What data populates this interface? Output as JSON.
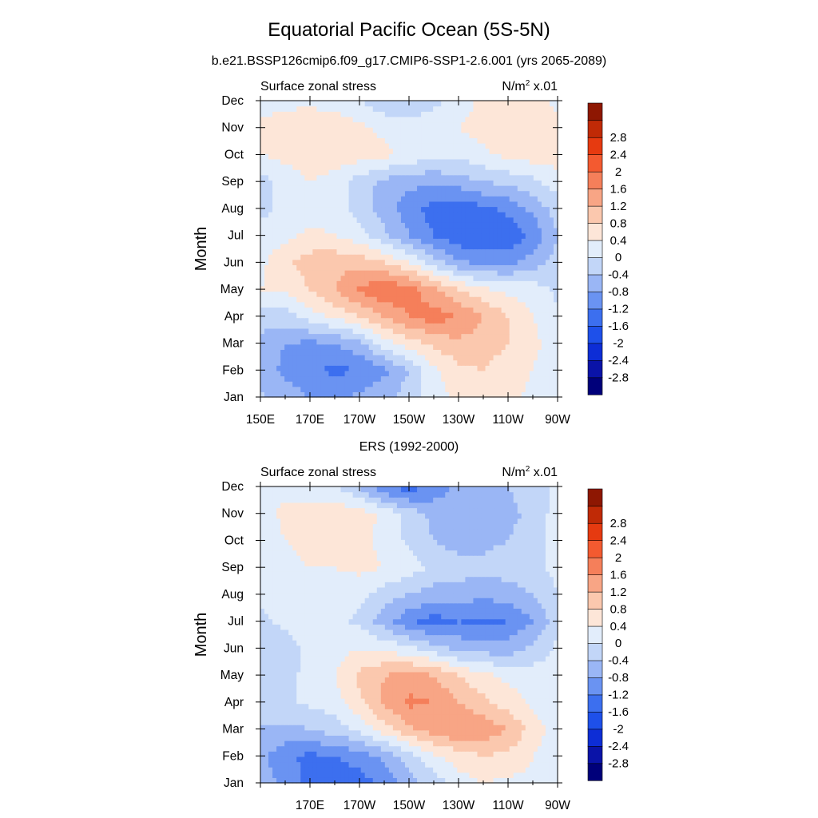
{
  "figure": {
    "title": "Equatorial Pacific Ocean (5S-5N)",
    "subtitle": "b.e21.BSSP126cmip6.f09_g17.CMIP6-SSP1-2.6.001 (yrs 2065-2089)"
  },
  "colors": {
    "levels": [
      "#00007a",
      "#0a13a8",
      "#0d2dd6",
      "#1e50ea",
      "#3c6fef",
      "#6a93f2",
      "#9ab6f5",
      "#c2d6f8",
      "#e2edfb",
      "#fde6d8",
      "#fbc8ae",
      "#f8a585",
      "#f57f5a",
      "#f35a30",
      "#e63a10",
      "#c02a06",
      "#8e1702"
    ]
  },
  "chart_data": [
    {
      "type": "heatmap",
      "panel": "top",
      "title": "",
      "left_label": "Surface zonal stress",
      "right_label": "N/m",
      "right_label_sup": "2",
      "right_label_suffix": " x.01",
      "xlabel": "",
      "ylabel": "Month",
      "x_range": [
        "150E",
        "90W"
      ],
      "x_ticks": [
        "150E",
        "170E",
        "170W",
        "150W",
        "130W",
        "110W",
        "90W"
      ],
      "y_ticks": [
        "Jan",
        "Feb",
        "Mar",
        "Apr",
        "May",
        "Jun",
        "Jul",
        "Aug",
        "Sep",
        "Oct",
        "Nov",
        "Dec"
      ],
      "colorbar_labels": [
        "-2.8",
        "-2.4",
        "-2",
        "-1.6",
        "-1.2",
        "-0.8",
        "-0.4",
        "0",
        "0.4",
        "0.8",
        "1.2",
        "1.6",
        "2",
        "2.4",
        "2.8"
      ],
      "x_values": [
        150,
        160,
        170,
        180,
        190,
        200,
        210,
        220,
        230,
        240,
        250,
        260,
        270
      ],
      "months": [
        "Jan",
        "Feb",
        "Mar",
        "Apr",
        "May",
        "Jun",
        "Jul",
        "Aug",
        "Sep",
        "Oct",
        "Nov",
        "Dec"
      ],
      "values": [
        [
          -0.3,
          -0.6,
          -0.8,
          -0.9,
          -0.7,
          -0.5,
          -0.2,
          0.2,
          0.5,
          0.6,
          0.5,
          0.3,
          0.1
        ],
        [
          -0.6,
          -0.9,
          -1.1,
          -1.3,
          -1.2,
          -0.9,
          -0.4,
          0.3,
          0.7,
          0.8,
          0.6,
          0.4,
          0.1
        ],
        [
          -0.5,
          -0.8,
          -0.9,
          -0.8,
          -0.5,
          0.2,
          0.6,
          0.9,
          1.1,
          1.0,
          0.8,
          0.5,
          0.2
        ],
        [
          -0.2,
          -0.2,
          0.2,
          0.5,
          0.8,
          1.2,
          1.6,
          1.8,
          1.6,
          1.2,
          0.8,
          0.4,
          0.1
        ],
        [
          0.4,
          0.5,
          0.8,
          1.2,
          1.7,
          2.0,
          1.8,
          1.3,
          0.8,
          0.5,
          0.3,
          0.2,
          -0.1
        ],
        [
          0.3,
          0.7,
          1.0,
          1.1,
          1.0,
          0.8,
          0.4,
          -0.2,
          -0.7,
          -0.9,
          -0.9,
          -0.6,
          -0.2
        ],
        [
          0.1,
          0.3,
          0.5,
          0.4,
          0.2,
          -0.3,
          -0.8,
          -1.2,
          -1.5,
          -1.6,
          -1.5,
          -1.1,
          -0.4
        ],
        [
          -0.1,
          0.1,
          0.2,
          0.2,
          -0.2,
          -0.6,
          -1.0,
          -1.4,
          -1.5,
          -1.3,
          -1.1,
          -0.7,
          -0.2
        ],
        [
          -0.2,
          0.2,
          0.4,
          0.2,
          -0.2,
          -0.5,
          -0.7,
          -0.7,
          -0.6,
          -0.4,
          -0.3,
          -0.1,
          0.2
        ],
        [
          0.4,
          0.5,
          0.6,
          0.7,
          0.6,
          0.5,
          0.3,
          0.1,
          0.1,
          0.3,
          0.5,
          0.6,
          0.6
        ],
        [
          0.5,
          0.6,
          0.7,
          0.7,
          0.5,
          0.3,
          0.2,
          0.2,
          0.4,
          0.6,
          0.7,
          0.7,
          0.5
        ],
        [
          0.2,
          0.3,
          0.3,
          0.2,
          0.0,
          -0.3,
          -0.3,
          -0.1,
          0.2,
          0.5,
          0.6,
          0.5,
          0.3
        ]
      ]
    },
    {
      "type": "heatmap",
      "panel": "bottom",
      "title": "ERS (1992-2000)",
      "left_label": "Surface zonal stress",
      "right_label": "N/m",
      "right_label_sup": "2",
      "right_label_suffix": " x.01",
      "xlabel": "",
      "ylabel": "Month",
      "x_range": [
        "150E",
        "90W"
      ],
      "x_ticks": [
        "",
        "170E",
        "170W",
        "150W",
        "130W",
        "110W",
        "90W"
      ],
      "y_ticks": [
        "Jan",
        "Feb",
        "Mar",
        "Apr",
        "May",
        "Jun",
        "Jul",
        "Aug",
        "Sep",
        "Oct",
        "Nov",
        "Dec"
      ],
      "colorbar_labels": [
        "-2.8",
        "-2.4",
        "-2",
        "-1.6",
        "-1.2",
        "-0.8",
        "-0.4",
        "0",
        "0.4",
        "0.8",
        "1.2",
        "1.6",
        "2",
        "2.4",
        "2.8"
      ],
      "x_values": [
        150,
        160,
        170,
        180,
        190,
        200,
        210,
        220,
        230,
        240,
        250,
        260,
        270
      ],
      "months": [
        "Jan",
        "Feb",
        "Mar",
        "Apr",
        "May",
        "Jun",
        "Jul",
        "Aug",
        "Sep",
        "Oct",
        "Nov",
        "Dec"
      ],
      "values": [
        [
          -0.5,
          -1.0,
          -1.3,
          -1.5,
          -1.4,
          -1.1,
          -0.6,
          -0.2,
          0.2,
          0.4,
          0.3,
          0.3,
          0.2
        ],
        [
          -0.7,
          -1.1,
          -1.3,
          -1.2,
          -1.0,
          -0.7,
          -0.2,
          0.3,
          0.6,
          0.8,
          0.7,
          0.4,
          0.2
        ],
        [
          -0.4,
          -0.5,
          -0.4,
          -0.2,
          0.1,
          0.6,
          1.1,
          1.4,
          1.6,
          1.5,
          1.2,
          0.6,
          0.2
        ],
        [
          -0.3,
          -0.1,
          0.1,
          0.2,
          0.7,
          1.3,
          1.7,
          1.6,
          1.2,
          0.9,
          0.6,
          0.3,
          0.1
        ],
        [
          -0.2,
          -0.1,
          0.1,
          0.4,
          0.9,
          1.2,
          1.4,
          1.2,
          0.8,
          0.5,
          0.3,
          0.2,
          0.1
        ],
        [
          -0.3,
          -0.2,
          0.1,
          0.2,
          0.4,
          0.3,
          0.1,
          -0.2,
          -0.5,
          -0.6,
          -0.6,
          -0.3,
          0.1
        ],
        [
          -0.1,
          0.1,
          0.2,
          0.1,
          -0.1,
          -0.6,
          -1.1,
          -1.4,
          -1.2,
          -1.3,
          -1.2,
          -0.8,
          -0.2
        ],
        [
          0.1,
          0.2,
          0.3,
          0.2,
          0.1,
          -0.2,
          -0.4,
          -0.6,
          -0.6,
          -0.7,
          -0.6,
          -0.4,
          0.0
        ],
        [
          0.1,
          0.3,
          0.4,
          0.4,
          0.5,
          0.4,
          0.2,
          -0.1,
          -0.2,
          -0.3,
          -0.2,
          -0.1,
          0.1
        ],
        [
          0.2,
          0.4,
          0.5,
          0.5,
          0.5,
          0.3,
          -0.1,
          -0.4,
          -0.6,
          -0.5,
          -0.4,
          -0.2,
          0.2
        ],
        [
          0.2,
          0.5,
          0.6,
          0.7,
          0.6,
          0.3,
          -0.2,
          -0.5,
          -0.6,
          -0.6,
          -0.5,
          -0.3,
          0.2
        ],
        [
          0.3,
          0.3,
          0.2,
          0.0,
          -0.4,
          -1.2,
          -1.4,
          -1.1,
          -0.7,
          -0.5,
          -0.4,
          -0.2,
          0.1
        ]
      ]
    }
  ]
}
